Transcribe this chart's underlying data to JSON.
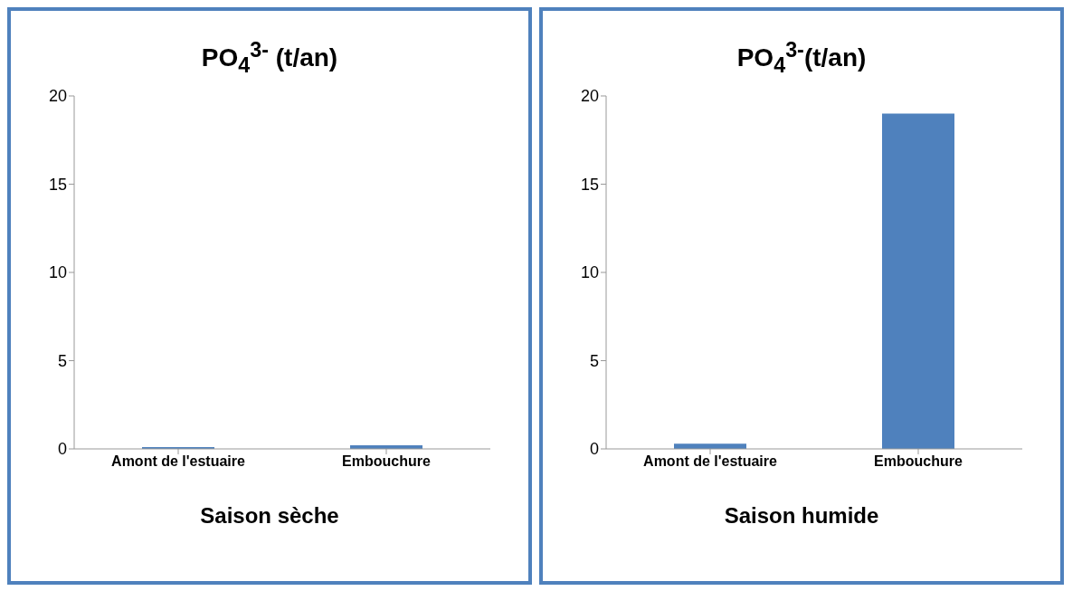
{
  "chart_data": [
    {
      "type": "bar",
      "title": "PO$_{4}$$^{3-}$ (t/an)",
      "xlabel": "Saison sèche",
      "categories": [
        "Amont de l'estuaire",
        "Embouchure"
      ],
      "values": [
        0.1,
        0.2
      ],
      "color": "#4f81bd",
      "ylim": [
        0,
        20
      ],
      "yticks": [
        0,
        5,
        10,
        15,
        20
      ],
      "grid": false
    },
    {
      "type": "bar",
      "title": "PO$_{4}$$^{3-}$(t/an)",
      "xlabel": "Saison humide",
      "categories": [
        "Amont de l'estuaire",
        "Embouchure"
      ],
      "values": [
        0.3,
        19
      ],
      "color": "#4f81bd",
      "ylim": [
        0,
        20
      ],
      "yticks": [
        0,
        5,
        10,
        15,
        20
      ],
      "grid": false
    }
  ]
}
